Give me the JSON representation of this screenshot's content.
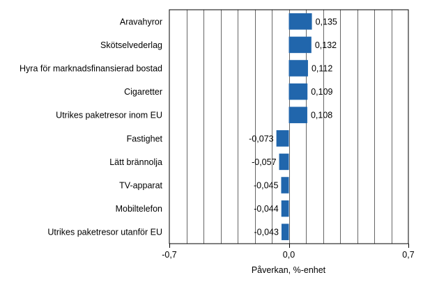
{
  "colors": {
    "bar": "#2166ac",
    "grid": "#000000",
    "plot_background": "#ffffff"
  },
  "chart_data": {
    "type": "bar",
    "orientation": "horizontal",
    "title": "",
    "xlabel": "Påverkan, %-enhet",
    "ylabel": "",
    "xlim": [
      -0.7,
      0.7
    ],
    "x_ticks": [
      -0.7,
      0.0,
      0.7
    ],
    "x_tick_labels": [
      "-0,7",
      "0,0",
      "0,7"
    ],
    "grid": true,
    "legend": "none",
    "categories": [
      "Aravahyror",
      "Skötselvederlag",
      "Hyra för marknadsfinansierad bostad",
      "Cigaretter",
      "Utrikes paketresor inom EU",
      "Fastighet",
      "Lätt brännolja",
      "TV-apparat",
      "Mobiltelefon",
      "Utrikes paketresor utanför EU"
    ],
    "values": [
      0.135,
      0.132,
      0.112,
      0.109,
      0.108,
      -0.073,
      -0.057,
      -0.045,
      -0.044,
      -0.043
    ],
    "value_labels": [
      "0,135",
      "0,132",
      "0,112",
      "0,109",
      "0,108",
      "-0,073",
      "-0,057",
      "-0,045",
      "-0,044",
      "-0,043"
    ]
  }
}
